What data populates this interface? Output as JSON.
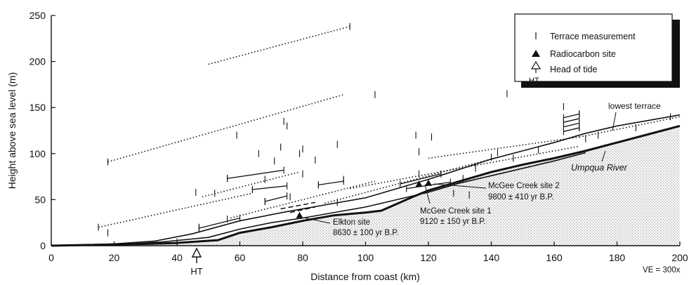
{
  "chart_data": {
    "type": "line",
    "xlabel": "Distance from coast (km)",
    "ylabel": "Height above sea level (m)",
    "xlim": [
      0,
      200
    ],
    "ylim": [
      0,
      250
    ],
    "xticks": [
      0,
      20,
      40,
      60,
      80,
      100,
      120,
      140,
      160,
      180,
      200
    ],
    "yticks": [
      0,
      50,
      100,
      150,
      200,
      250
    ],
    "grid": false,
    "legend_position": "top-right",
    "legend": [
      {
        "symbol": "tick",
        "label": "Terrace measurement"
      },
      {
        "symbol": "filled-triangle",
        "label": "Radiocarbon site"
      },
      {
        "symbol": "open-arrow",
        "label": "Head of tide",
        "sublabel": "HT"
      }
    ],
    "river_label": "Umpqua River",
    "lowest_terrace_label": "lowest terrace",
    "head_of_tide": {
      "x": 46,
      "label": "HT"
    },
    "ve_label": "VE = 300x",
    "river_profile": {
      "x": [
        0,
        15,
        30,
        40,
        53,
        60,
        70,
        80,
        90,
        100,
        105,
        115,
        120,
        130,
        140,
        150,
        160,
        170,
        180,
        190,
        200
      ],
      "y": [
        0,
        1,
        2,
        3,
        6,
        14,
        20,
        27,
        33,
        36,
        38,
        53,
        60,
        70,
        80,
        88,
        95,
        103,
        112,
        121,
        130
      ]
    },
    "lowest_terrace_profile": {
      "x": [
        0,
        20,
        33,
        45,
        60,
        75,
        90,
        100,
        110,
        120,
        130,
        140,
        150,
        160,
        170,
        180,
        190,
        200
      ],
      "y": [
        0,
        2,
        5,
        13,
        27,
        37,
        46,
        52,
        62,
        72,
        83,
        94,
        103,
        112,
        122,
        130,
        136,
        142
      ]
    },
    "second_profile": {
      "x": [
        0,
        20,
        35,
        50,
        60,
        70,
        80,
        90,
        100,
        110,
        120,
        130,
        140,
        150,
        160,
        170
      ],
      "y": [
        0,
        1,
        4,
        9,
        18,
        25,
        30,
        36,
        42,
        50,
        58,
        68,
        76,
        84,
        92,
        101
      ]
    },
    "terraces": [
      {
        "style": "dotted",
        "x": [
          18,
          93
        ],
        "y": [
          91,
          164
        ]
      },
      {
        "style": "dotted",
        "x": [
          50,
          95
        ],
        "y": [
          197,
          238
        ]
      },
      {
        "style": "dotted",
        "x": [
          15,
          64
        ],
        "y": [
          20,
          57
        ]
      },
      {
        "style": "dotted",
        "x": [
          48,
          79
        ],
        "y": [
          53,
          80
        ]
      },
      {
        "style": "dotted",
        "x": [
          57,
          103
        ],
        "y": [
          30,
          70
        ]
      },
      {
        "style": "dotted",
        "x": [
          87,
          141
        ],
        "y": [
          46,
          95
        ]
      },
      {
        "style": "dotted",
        "x": [
          120,
          168
        ],
        "y": [
          95,
          118
        ]
      },
      {
        "style": "dotted",
        "x": [
          95,
          168
        ],
        "y": [
          62,
          108
        ]
      },
      {
        "style": "dotted",
        "x": [
          168,
          200
        ],
        "y": [
          118,
          140
        ]
      },
      {
        "style": "solid",
        "x": [
          56,
          74
        ],
        "y": [
          73,
          82
        ]
      },
      {
        "style": "solid",
        "x": [
          64,
          75
        ],
        "y": [
          61,
          65
        ]
      },
      {
        "style": "solid",
        "x": [
          68,
          75
        ],
        "y": [
          48,
          54
        ]
      },
      {
        "style": "solid",
        "x": [
          47,
          60
        ],
        "y": [
          19,
          30
        ]
      },
      {
        "style": "solid",
        "x": [
          85,
          93
        ],
        "y": [
          66,
          70
        ]
      },
      {
        "style": "solid",
        "x": [
          111,
          124
        ],
        "y": [
          67,
          78
        ]
      },
      {
        "style": "solid",
        "x": [
          113,
          127
        ],
        "y": [
          62,
          69
        ]
      },
      {
        "style": "solid",
        "x": [
          163,
          168
        ],
        "y": [
          139,
          143
        ]
      },
      {
        "style": "solid",
        "x": [
          163,
          168
        ],
        "y": [
          134,
          138
        ]
      },
      {
        "style": "solid",
        "x": [
          163,
          168
        ],
        "y": [
          129,
          133
        ]
      },
      {
        "style": "solid",
        "x": [
          163,
          168
        ],
        "y": [
          124,
          128
        ]
      },
      {
        "style": "dashed",
        "x": [
          73,
          84
        ],
        "y": [
          40,
          47
        ]
      },
      {
        "style": "dashed",
        "x": [
          76,
          84
        ],
        "y": [
          36,
          42
        ]
      }
    ],
    "measurements": [
      [
        15,
        20
      ],
      [
        18,
        91
      ],
      [
        18,
        14
      ],
      [
        40,
        4
      ],
      [
        47,
        20
      ],
      [
        46,
        58
      ],
      [
        52,
        57
      ],
      [
        56,
        73
      ],
      [
        56,
        29
      ],
      [
        59,
        120
      ],
      [
        64,
        61
      ],
      [
        66,
        100
      ],
      [
        68,
        48
      ],
      [
        68,
        72
      ],
      [
        71,
        92
      ],
      [
        73,
        107
      ],
      [
        74,
        135
      ],
      [
        75,
        130
      ],
      [
        76,
        53
      ],
      [
        79,
        100
      ],
      [
        80,
        78
      ],
      [
        80,
        105
      ],
      [
        84,
        93
      ],
      [
        85,
        66
      ],
      [
        91,
        47
      ],
      [
        91,
        110
      ],
      [
        93,
        72
      ],
      [
        95,
        238
      ],
      [
        103,
        164
      ],
      [
        116,
        120
      ],
      [
        117,
        102
      ],
      [
        117,
        78
      ],
      [
        121,
        118
      ],
      [
        128,
        57
      ],
      [
        131,
        73
      ],
      [
        133,
        55
      ],
      [
        135,
        84
      ],
      [
        140,
        96
      ],
      [
        142,
        101
      ],
      [
        145,
        165
      ],
      [
        147,
        95
      ],
      [
        155,
        104
      ],
      [
        163,
        151
      ],
      [
        163,
        135
      ],
      [
        168,
        143
      ],
      [
        168,
        128
      ],
      [
        170,
        116
      ],
      [
        174,
        120
      ],
      [
        186,
        128
      ],
      [
        197,
        140
      ]
    ],
    "radiocarbon_sites": [
      {
        "x": 79,
        "y": 33,
        "label": "Elkton site",
        "date": "8630 ± 100 yr B.P."
      },
      {
        "x": 117,
        "y": 67,
        "label": "McGee Creek site 1",
        "date": "9120 ± 150 yr B.P."
      },
      {
        "x": 120,
        "y": 68,
        "label": "McGee Creek site 2",
        "date": "9800 ± 410 yr B.P."
      }
    ]
  }
}
